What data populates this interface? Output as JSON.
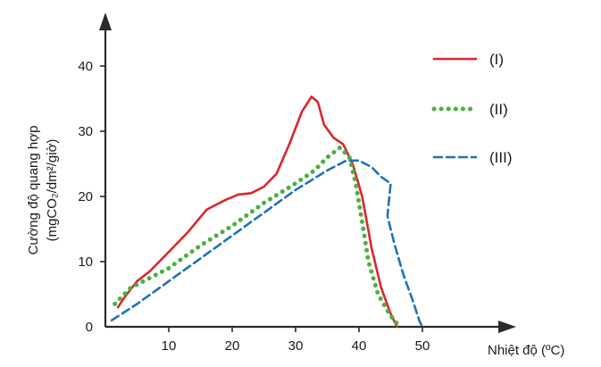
{
  "chart_data": {
    "type": "line",
    "xlabel": "Nhiệt độ (ºC)",
    "ylabel_line1": "Cường độ quang hợp",
    "ylabel_line2": "(mgCO₂/dm²/giờ)",
    "xticks": [
      10,
      20,
      30,
      40,
      50
    ],
    "yticks": [
      0,
      10,
      20,
      30,
      40
    ],
    "xlim": [
      0,
      55
    ],
    "ylim": [
      0,
      45
    ],
    "legend_position": "top-right",
    "grid": false,
    "series": [
      {
        "name": "(I)",
        "color": "#d9262c",
        "style": "solid",
        "points": [
          [
            2,
            3
          ],
          [
            3,
            4.5
          ],
          [
            5,
            7
          ],
          [
            7,
            8.5
          ],
          [
            10,
            11.5
          ],
          [
            13,
            14.5
          ],
          [
            16,
            18
          ],
          [
            19,
            19.5
          ],
          [
            21,
            20.3
          ],
          [
            23,
            20.5
          ],
          [
            25,
            21.5
          ],
          [
            27,
            23.5
          ],
          [
            29,
            28
          ],
          [
            31,
            33
          ],
          [
            32.5,
            35.3
          ],
          [
            33.5,
            34.5
          ],
          [
            34.5,
            31
          ],
          [
            36,
            29
          ],
          [
            37.5,
            28
          ],
          [
            39,
            25
          ],
          [
            40.5,
            20
          ],
          [
            42,
            12
          ],
          [
            43.5,
            6
          ],
          [
            45,
            2
          ],
          [
            46,
            0
          ]
        ]
      },
      {
        "name": "(II)",
        "color": "#4caf3e",
        "style": "dotted",
        "points": [
          [
            1.5,
            3.5
          ],
          [
            4,
            6
          ],
          [
            7,
            7.5
          ],
          [
            10,
            9
          ],
          [
            15,
            12.5
          ],
          [
            20,
            15.5
          ],
          [
            25,
            19
          ],
          [
            30,
            22
          ],
          [
            33,
            24
          ],
          [
            35,
            26
          ],
          [
            37,
            27.5
          ],
          [
            38.5,
            26
          ],
          [
            39.5,
            22
          ],
          [
            40.5,
            16
          ],
          [
            41.5,
            10
          ],
          [
            43,
            5
          ],
          [
            44.5,
            2.5
          ],
          [
            45.5,
            1
          ],
          [
            46.5,
            0
          ]
        ]
      },
      {
        "name": "(III)",
        "color": "#1f73b7",
        "style": "dashed",
        "points": [
          [
            1,
            1
          ],
          [
            5,
            3.5
          ],
          [
            10,
            7
          ],
          [
            15,
            10.5
          ],
          [
            20,
            14
          ],
          [
            25,
            17.5
          ],
          [
            30,
            21
          ],
          [
            35,
            24
          ],
          [
            38,
            25.5
          ],
          [
            40,
            25.5
          ],
          [
            42,
            24.5
          ],
          [
            43.5,
            23
          ],
          [
            45,
            22
          ],
          [
            44.5,
            17
          ],
          [
            45.5,
            13
          ],
          [
            47,
            8
          ],
          [
            48.5,
            4
          ],
          [
            49.5,
            1
          ],
          [
            50,
            0
          ]
        ]
      }
    ]
  }
}
